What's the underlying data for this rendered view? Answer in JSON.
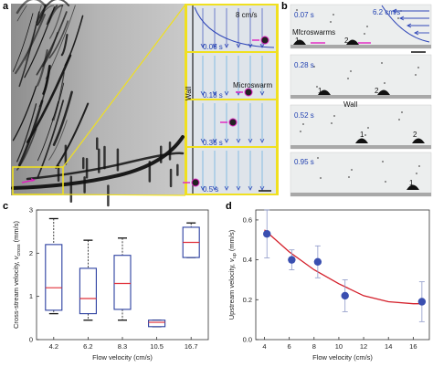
{
  "panel_a": {
    "letter": "a",
    "frames": [
      {
        "time": "0.06 s",
        "speed": "8 cm/s"
      },
      {
        "time": "0.18 s",
        "label": "Microswarm"
      },
      {
        "time": "0.36 s"
      },
      {
        "time": "0.5 s"
      }
    ],
    "wall_label": "Wall"
  },
  "panel_b": {
    "letter": "b",
    "frames": [
      {
        "time": "0.07 s",
        "speed": "6.2 cm/s",
        "label": "Microswarms",
        "markers": [
          "1",
          "2"
        ]
      },
      {
        "time": "0.28 s",
        "markers": [
          "1",
          "2"
        ],
        "wall_label": "Wall"
      },
      {
        "time": "0.52 s",
        "markers": [
          "1",
          "2"
        ]
      },
      {
        "time": "0.95 s",
        "markers": [
          "1"
        ]
      }
    ]
  },
  "chart_data": [
    {
      "panel": "c",
      "type": "box",
      "xlabel": "Flow velocity (cm/s)",
      "ylabel": "Cross-stream velocity,",
      "ylabel_symbol": "v",
      "ylabel_sub": "cross",
      "ylabel_unit": "(mm/s)",
      "categories": [
        "4.2",
        "6.2",
        "8.3",
        "10.5",
        "16.7"
      ],
      "ylim": [
        0,
        3
      ],
      "yticks": [
        0,
        1,
        2,
        3
      ],
      "boxes": [
        {
          "min": 0.6,
          "q1": 0.68,
          "median": 1.2,
          "q3": 2.2,
          "max": 2.8
        },
        {
          "min": 0.45,
          "q1": 0.6,
          "median": 0.95,
          "q3": 1.65,
          "max": 2.3
        },
        {
          "min": 0.45,
          "q1": 0.7,
          "median": 1.3,
          "q3": 1.95,
          "max": 2.35
        },
        {
          "min": 0.3,
          "q1": 0.3,
          "median": 0.4,
          "q3": 0.45,
          "max": 0.45
        },
        {
          "min": 1.9,
          "q1": 1.9,
          "median": 2.25,
          "q3": 2.6,
          "max": 2.7
        }
      ],
      "box_color": "#2b3fa0",
      "median_color": "#e0303a"
    },
    {
      "panel": "d",
      "type": "scatter",
      "xlabel": "Flow velocity (cm/s)",
      "ylabel": "Upstream velocity,",
      "ylabel_symbol": "v",
      "ylabel_sub": "up",
      "ylabel_unit": "(mm/s)",
      "xlim": [
        3.3,
        17.3
      ],
      "ylim": [
        0,
        0.65
      ],
      "xticks": [
        4,
        6,
        8,
        10,
        12,
        14,
        16
      ],
      "yticks": [
        0.0,
        0.2,
        0.4,
        0.6
      ],
      "ytick_labels": [
        "0.0",
        "0.2",
        "0.4",
        "0.6"
      ],
      "points": [
        {
          "x": 4.2,
          "y": 0.53,
          "err": 0.12
        },
        {
          "x": 6.2,
          "y": 0.4,
          "err": 0.05
        },
        {
          "x": 8.3,
          "y": 0.39,
          "err": 0.08
        },
        {
          "x": 10.5,
          "y": 0.22,
          "err": 0.08
        },
        {
          "x": 16.7,
          "y": 0.19,
          "err": 0.1
        }
      ],
      "fit": [
        [
          4.0,
          0.55
        ],
        [
          6.0,
          0.44
        ],
        [
          8.0,
          0.35
        ],
        [
          10.0,
          0.28
        ],
        [
          12.0,
          0.22
        ],
        [
          14.0,
          0.19
        ],
        [
          16.0,
          0.18
        ],
        [
          16.5,
          0.18
        ]
      ],
      "point_color": "#3a4fb0",
      "fit_color": "#d41f2a"
    }
  ],
  "panel_c_letter": "c",
  "panel_d_letter": "d"
}
